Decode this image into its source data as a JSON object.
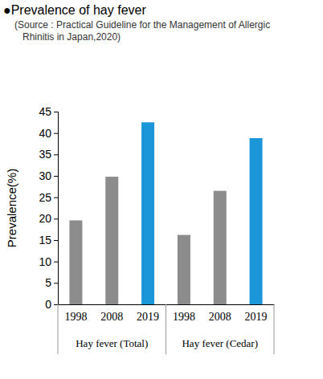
{
  "chart_data": {
    "type": "bar",
    "title": "●Prevalence of hay fever",
    "subtitle": [
      "(Source : Practical Guideline for the Management of Allergic",
      "Rhinitis in Japan,2020)"
    ],
    "y_label": "Prevalence(%)",
    "categories": [
      "1998",
      "2008",
      "2019",
      "1998",
      "2008",
      "2019"
    ],
    "groups": [
      "Hay fever (Total)",
      "Hay fever (Cedar)"
    ],
    "values": [
      19.6,
      29.8,
      42.5,
      16.2,
      26.5,
      38.8
    ],
    "colors": [
      "#8c8c8c",
      "#8c8c8c",
      "#1a96d9",
      "#8c8c8c",
      "#8c8c8c",
      "#1a96d9"
    ],
    "ylim": [
      0,
      45
    ],
    "yticks": [
      0,
      5,
      10,
      15,
      20,
      25,
      30,
      35,
      40,
      45
    ],
    "grid": false
  }
}
